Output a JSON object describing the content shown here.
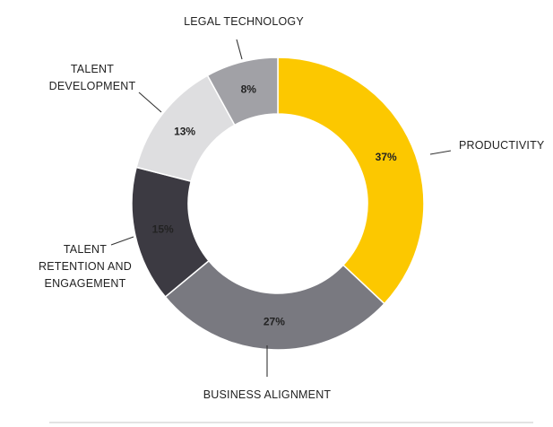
{
  "chart_data": {
    "type": "pie",
    "donut": true,
    "legend": "none",
    "slices": [
      {
        "label": "PRODUCTIVITY",
        "value": 37,
        "value_label": "37%",
        "color": "#fcc800"
      },
      {
        "label": "BUSINESS ALIGNMENT",
        "value": 27,
        "value_label": "27%",
        "color": "#797980"
      },
      {
        "label_lines": [
          "TALENT",
          "RETENTION AND",
          "ENGAGEMENT"
        ],
        "value": 15,
        "value_label": "15%",
        "color": "#3c3a42"
      },
      {
        "label_lines": [
          "TALENT",
          "DEVELOPMENT"
        ],
        "value": 13,
        "value_label": "13%",
        "color": "#dedee0"
      },
      {
        "label": "LEGAL TECHNOLOGY",
        "value": 8,
        "value_label": "8%",
        "color": "#a1a1a6"
      }
    ]
  }
}
